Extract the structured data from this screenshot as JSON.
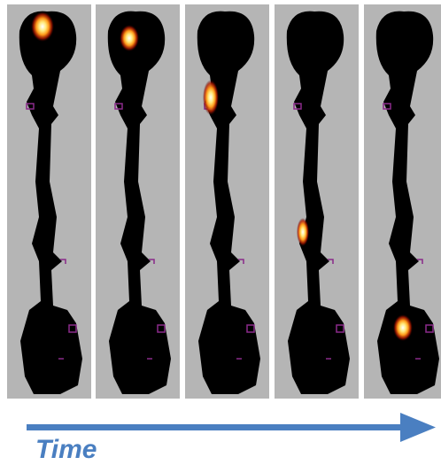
{
  "label": "Time"
}
